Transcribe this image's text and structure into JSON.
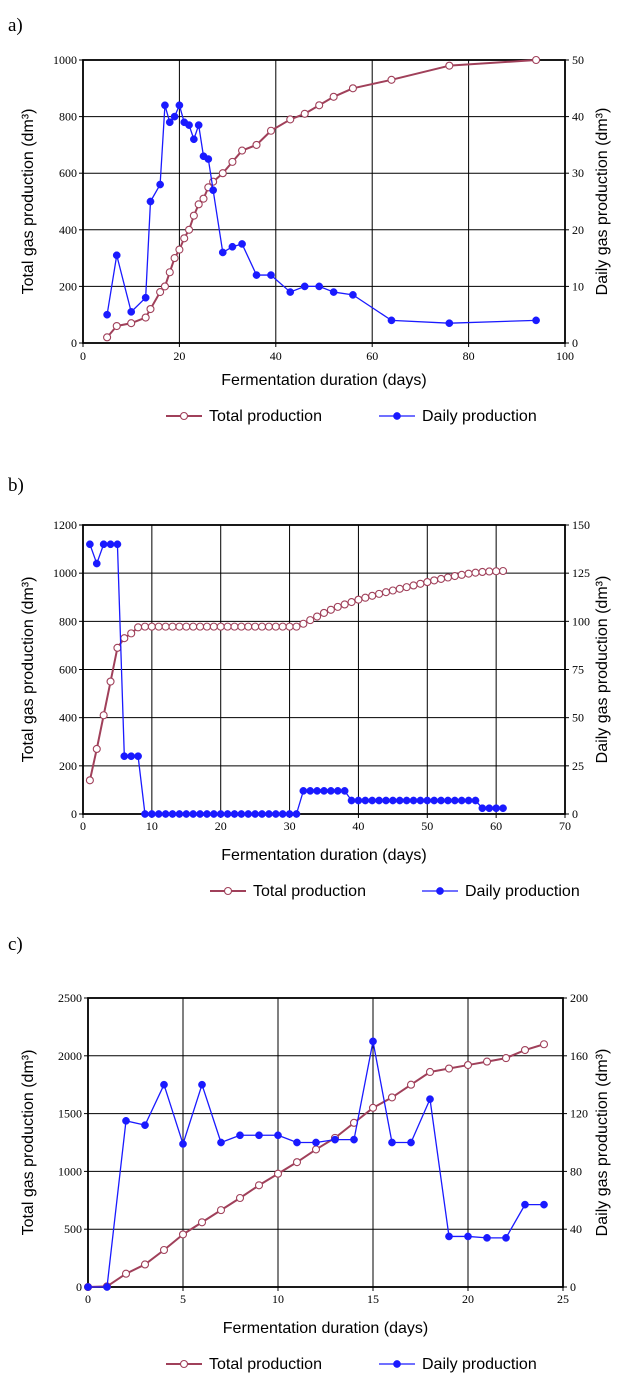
{
  "colors": {
    "total": "#a0405a",
    "daily": "#1a1aff",
    "background": "#ffffff"
  },
  "chart_data": [
    {
      "panel": "a)",
      "type": "line",
      "xlabel": "Fermentation duration (days)",
      "ylabel_left": "Total gas production (dm³)",
      "ylabel_right": "Daily gas production (dm³)",
      "xlim": [
        0,
        100
      ],
      "ylim_left": [
        0,
        1000
      ],
      "ylim_right": [
        0,
        50
      ],
      "x_ticks": [
        "0",
        "20",
        "40",
        "60",
        "80",
        "100"
      ],
      "y_ticks_left": [
        "0",
        "200",
        "400",
        "600",
        "800",
        "1000"
      ],
      "y_ticks_right": [
        "0",
        "10",
        "20",
        "30",
        "40",
        "50"
      ],
      "grid": true,
      "legend": [
        "Total production",
        "Daily production"
      ],
      "series": [
        {
          "name": "Total production",
          "axis": "left",
          "marker": "open-circle",
          "points": [
            [
              5,
              20
            ],
            [
              7,
              60
            ],
            [
              10,
              70
            ],
            [
              13,
              90
            ],
            [
              14,
              120
            ],
            [
              16,
              180
            ],
            [
              17,
              200
            ],
            [
              18,
              250
            ],
            [
              19,
              300
            ],
            [
              20,
              330
            ],
            [
              21,
              370
            ],
            [
              22,
              400
            ],
            [
              23,
              450
            ],
            [
              24,
              490
            ],
            [
              25,
              510
            ],
            [
              26,
              550
            ],
            [
              27,
              570
            ],
            [
              29,
              600
            ],
            [
              31,
              640
            ],
            [
              33,
              680
            ],
            [
              36,
              700
            ],
            [
              39,
              750
            ],
            [
              43,
              790
            ],
            [
              46,
              810
            ],
            [
              49,
              840
            ],
            [
              52,
              870
            ],
            [
              56,
              900
            ],
            [
              64,
              930
            ],
            [
              76,
              980
            ],
            [
              94,
              1000
            ]
          ]
        },
        {
          "name": "Daily production",
          "axis": "right",
          "marker": "filled-circle",
          "points": [
            [
              5,
              5
            ],
            [
              7,
              15.5
            ],
            [
              10,
              5.5
            ],
            [
              13,
              8
            ],
            [
              14,
              25
            ],
            [
              16,
              28
            ],
            [
              17,
              42
            ],
            [
              18,
              39
            ],
            [
              19,
              40
            ],
            [
              20,
              42
            ],
            [
              21,
              39
            ],
            [
              22,
              38.5
            ],
            [
              23,
              36
            ],
            [
              24,
              38.5
            ],
            [
              25,
              33
            ],
            [
              26,
              32.5
            ],
            [
              27,
              27
            ],
            [
              29,
              16
            ],
            [
              31,
              17
            ],
            [
              33,
              17.5
            ],
            [
              36,
              12
            ],
            [
              39,
              12
            ],
            [
              43,
              9
            ],
            [
              46,
              10
            ],
            [
              49,
              10
            ],
            [
              52,
              9
            ],
            [
              56,
              8.5
            ],
            [
              64,
              4
            ],
            [
              76,
              3.5
            ],
            [
              94,
              4
            ]
          ]
        }
      ]
    },
    {
      "panel": "b)",
      "type": "line",
      "xlabel": "Fermentation duration (days)",
      "ylabel_left": "Total gas production (dm³)",
      "ylabel_right": "Daily gas production (dm³)",
      "xlim": [
        0,
        70
      ],
      "ylim_left": [
        0,
        1200
      ],
      "ylim_right": [
        0,
        150
      ],
      "x_ticks": [
        "0",
        "10",
        "20",
        "30",
        "40",
        "50",
        "60",
        "70"
      ],
      "y_ticks_left": [
        "0",
        "200",
        "400",
        "600",
        "800",
        "1000",
        "1200"
      ],
      "y_ticks_right": [
        "0",
        "25",
        "50",
        "75",
        "100",
        "125",
        "150"
      ],
      "grid": true,
      "legend": [
        "Total production",
        "Daily production"
      ],
      "series": [
        {
          "name": "Total production",
          "axis": "left",
          "marker": "open-circle",
          "points": [
            [
              1,
              140
            ],
            [
              2,
              270
            ],
            [
              3,
              410
            ],
            [
              4,
              550
            ],
            [
              5,
              690
            ],
            [
              6,
              730
            ],
            [
              7,
              750
            ],
            [
              8,
              775
            ],
            [
              9,
              778
            ],
            [
              10,
              778
            ],
            [
              11,
              778
            ],
            [
              12,
              778
            ],
            [
              13,
              778
            ],
            [
              14,
              778
            ],
            [
              15,
              778
            ],
            [
              16,
              778
            ],
            [
              17,
              778
            ],
            [
              18,
              778
            ],
            [
              19,
              778
            ],
            [
              20,
              778
            ],
            [
              21,
              778
            ],
            [
              22,
              778
            ],
            [
              23,
              778
            ],
            [
              24,
              778
            ],
            [
              25,
              778
            ],
            [
              26,
              778
            ],
            [
              27,
              778
            ],
            [
              28,
              778
            ],
            [
              29,
              778
            ],
            [
              30,
              778
            ],
            [
              31,
              778
            ],
            [
              32,
              790
            ],
            [
              33,
              805
            ],
            [
              34,
              820
            ],
            [
              35,
              835
            ],
            [
              36,
              848
            ],
            [
              37,
              860
            ],
            [
              38,
              870
            ],
            [
              39,
              880
            ],
            [
              40,
              890
            ],
            [
              41,
              898
            ],
            [
              42,
              906
            ],
            [
              43,
              914
            ],
            [
              44,
              921
            ],
            [
              45,
              928
            ],
            [
              46,
              935
            ],
            [
              47,
              942
            ],
            [
              48,
              949
            ],
            [
              49,
              956
            ],
            [
              50,
              963
            ],
            [
              51,
              970
            ],
            [
              52,
              976
            ],
            [
              53,
              982
            ],
            [
              54,
              988
            ],
            [
              55,
              993
            ],
            [
              56,
              998
            ],
            [
              57,
              1002
            ],
            [
              58,
              1005
            ],
            [
              59,
              1007
            ],
            [
              60,
              1008
            ],
            [
              61,
              1009
            ]
          ]
        },
        {
          "name": "Daily production",
          "axis": "right",
          "marker": "filled-circle",
          "points": [
            [
              1,
              140
            ],
            [
              2,
              130
            ],
            [
              3,
              140
            ],
            [
              4,
              140
            ],
            [
              5,
              140
            ],
            [
              6,
              30
            ],
            [
              7,
              30
            ],
            [
              8,
              30
            ],
            [
              9,
              0
            ],
            [
              10,
              0
            ],
            [
              11,
              0
            ],
            [
              12,
              0
            ],
            [
              13,
              0
            ],
            [
              14,
              0
            ],
            [
              15,
              0
            ],
            [
              16,
              0
            ],
            [
              17,
              0
            ],
            [
              18,
              0
            ],
            [
              19,
              0
            ],
            [
              20,
              0
            ],
            [
              21,
              0
            ],
            [
              22,
              0
            ],
            [
              23,
              0
            ],
            [
              24,
              0
            ],
            [
              25,
              0
            ],
            [
              26,
              0
            ],
            [
              27,
              0
            ],
            [
              28,
              0
            ],
            [
              29,
              0
            ],
            [
              30,
              0
            ],
            [
              31,
              0
            ],
            [
              32,
              12
            ],
            [
              33,
              12
            ],
            [
              34,
              12
            ],
            [
              35,
              12
            ],
            [
              36,
              12
            ],
            [
              37,
              12
            ],
            [
              38,
              12
            ],
            [
              39,
              7
            ],
            [
              40,
              7
            ],
            [
              41,
              7
            ],
            [
              42,
              7
            ],
            [
              43,
              7
            ],
            [
              44,
              7
            ],
            [
              45,
              7
            ],
            [
              46,
              7
            ],
            [
              47,
              7
            ],
            [
              48,
              7
            ],
            [
              49,
              7
            ],
            [
              50,
              7
            ],
            [
              51,
              7
            ],
            [
              52,
              7
            ],
            [
              53,
              7
            ],
            [
              54,
              7
            ],
            [
              55,
              7
            ],
            [
              56,
              7
            ],
            [
              57,
              7
            ],
            [
              58,
              3
            ],
            [
              59,
              3
            ],
            [
              60,
              3
            ],
            [
              61,
              3
            ]
          ]
        }
      ]
    },
    {
      "panel": "c)",
      "type": "line",
      "xlabel": "Fermentation duration (days)",
      "ylabel_left": "Total gas production (dm³)",
      "ylabel_right": "Daily gas production (dm³)",
      "xlim": [
        0,
        25
      ],
      "ylim_left": [
        0,
        2500
      ],
      "ylim_right": [
        0,
        200
      ],
      "x_ticks": [
        "0",
        "5",
        "10",
        "15",
        "20",
        "25"
      ],
      "y_ticks_left": [
        "0",
        "500",
        "1000",
        "1500",
        "2000",
        "2500"
      ],
      "y_ticks_right": [
        "0",
        "40",
        "80",
        "120",
        "160",
        "200"
      ],
      "grid": true,
      "legend": [
        "Total production",
        "Daily production"
      ],
      "series": [
        {
          "name": "Total production",
          "axis": "left",
          "marker": "open-circle",
          "points": [
            [
              0,
              0
            ],
            [
              1,
              5
            ],
            [
              2,
              115
            ],
            [
              3,
              195
            ],
            [
              4,
              320
            ],
            [
              5,
              455
            ],
            [
              6,
              560
            ],
            [
              7,
              665
            ],
            [
              8,
              770
            ],
            [
              9,
              880
            ],
            [
              10,
              980
            ],
            [
              11,
              1080
            ],
            [
              12,
              1190
            ],
            [
              13,
              1290
            ],
            [
              14,
              1420
            ],
            [
              15,
              1550
            ],
            [
              16,
              1640
            ],
            [
              17,
              1750
            ],
            [
              18,
              1860
            ],
            [
              19,
              1890
            ],
            [
              20,
              1920
            ],
            [
              21,
              1950
            ],
            [
              22,
              1980
            ],
            [
              23,
              2050
            ],
            [
              24,
              2100
            ]
          ]
        },
        {
          "name": "Daily production",
          "axis": "right",
          "marker": "filled-circle",
          "points": [
            [
              0,
              0
            ],
            [
              1,
              0
            ],
            [
              2,
              115
            ],
            [
              3,
              112
            ],
            [
              4,
              140
            ],
            [
              5,
              99
            ],
            [
              6,
              140
            ],
            [
              7,
              100
            ],
            [
              8,
              105
            ],
            [
              9,
              105
            ],
            [
              10,
              105
            ],
            [
              11,
              100
            ],
            [
              12,
              100
            ],
            [
              13,
              102
            ],
            [
              14,
              102
            ],
            [
              15,
              170
            ],
            [
              16,
              100
            ],
            [
              17,
              100
            ],
            [
              18,
              130
            ],
            [
              19,
              35
            ],
            [
              20,
              35
            ],
            [
              21,
              34
            ],
            [
              22,
              34
            ],
            [
              23,
              57
            ],
            [
              24,
              57
            ]
          ]
        }
      ]
    }
  ]
}
